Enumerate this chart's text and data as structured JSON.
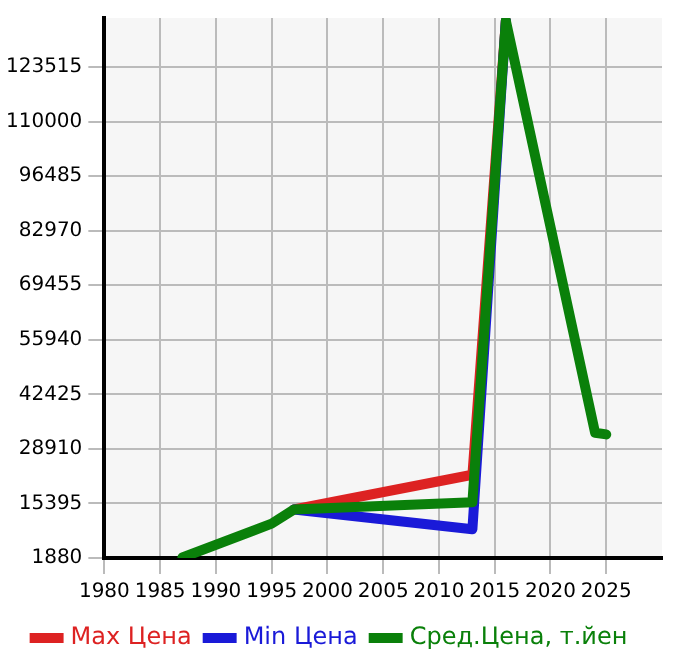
{
  "chart_data": {
    "type": "line",
    "xlim": [
      1980,
      2030
    ],
    "xticks": [
      1980,
      1985,
      1990,
      1995,
      2000,
      2005,
      2010,
      2015,
      2020,
      2025
    ],
    "ylim": [
      1880,
      135680
    ],
    "yticks": [
      1880,
      15395,
      28910,
      42425,
      55940,
      69455,
      82970,
      96485,
      110000,
      123515
    ],
    "grid": true,
    "legend": "bottom",
    "marker": "none",
    "line_style": "solid",
    "series": [
      {
        "name": "Max Цена",
        "color": "#dd2222",
        "x": [
          1997,
          2013,
          2016
        ],
        "values": [
          13900,
          22500,
          135000
        ]
      },
      {
        "name": "Min Цена",
        "color": "#1a1ad8",
        "x": [
          1997,
          2013,
          2016
        ],
        "values": [
          13900,
          9000,
          135000
        ]
      },
      {
        "name": "Сред.Цена, т.йен",
        "color": "#0a800a",
        "x": [
          1987,
          1995,
          1997,
          2013,
          2016,
          2024,
          2025
        ],
        "values": [
          2000,
          10400,
          13900,
          15700,
          135000,
          32900,
          32500
        ]
      }
    ]
  }
}
